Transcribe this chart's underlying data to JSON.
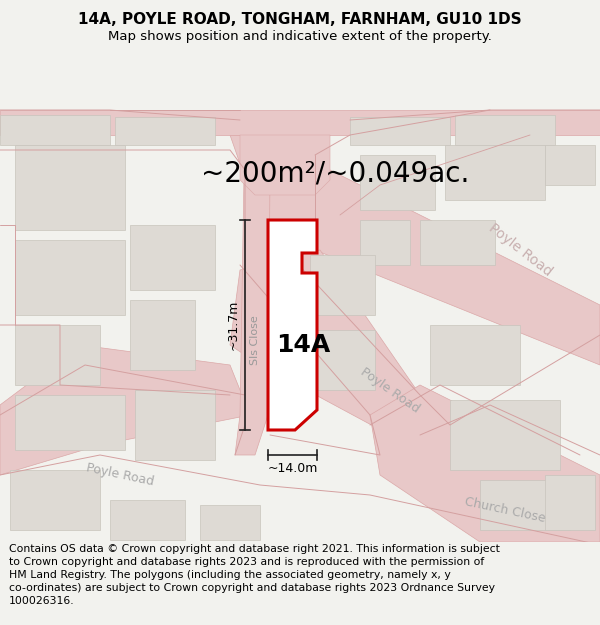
{
  "title": "14A, POYLE ROAD, TONGHAM, FARNHAM, GU10 1DS",
  "subtitle": "Map shows position and indicative extent of the property.",
  "area_text": "~200m²/~0.049ac.",
  "label_14a": "14A",
  "dim_width": "~14.0m",
  "dim_height": "~31.7m",
  "footer_text": "Contains OS data © Crown copyright and database right 2021. This information is subject to Crown copyright and database rights 2023 and is reproduced with the permission of HM Land Registry. The polygons (including the associated geometry, namely x, y co-ordinates) are subject to Crown copyright and database rights 2023 Ordnance Survey 100026316.",
  "bg_color": "#f2f2ee",
  "map_bg": "#f8f8f5",
  "plot_color": "#cc0000",
  "road_color": "#e8c8c8",
  "road_color2": "#d8b8b8",
  "road_line_color": "#dba8a8",
  "building_color": "#dedad4",
  "building_edge": "#c8c4bc",
  "dim_color": "#222222",
  "road_label_color": "#aaaaaa",
  "sls_close_color": "#888888",
  "title_fontsize": 11,
  "subtitle_fontsize": 9.5,
  "area_fontsize": 20,
  "footer_fontsize": 7.8,
  "label_fontsize": 18
}
